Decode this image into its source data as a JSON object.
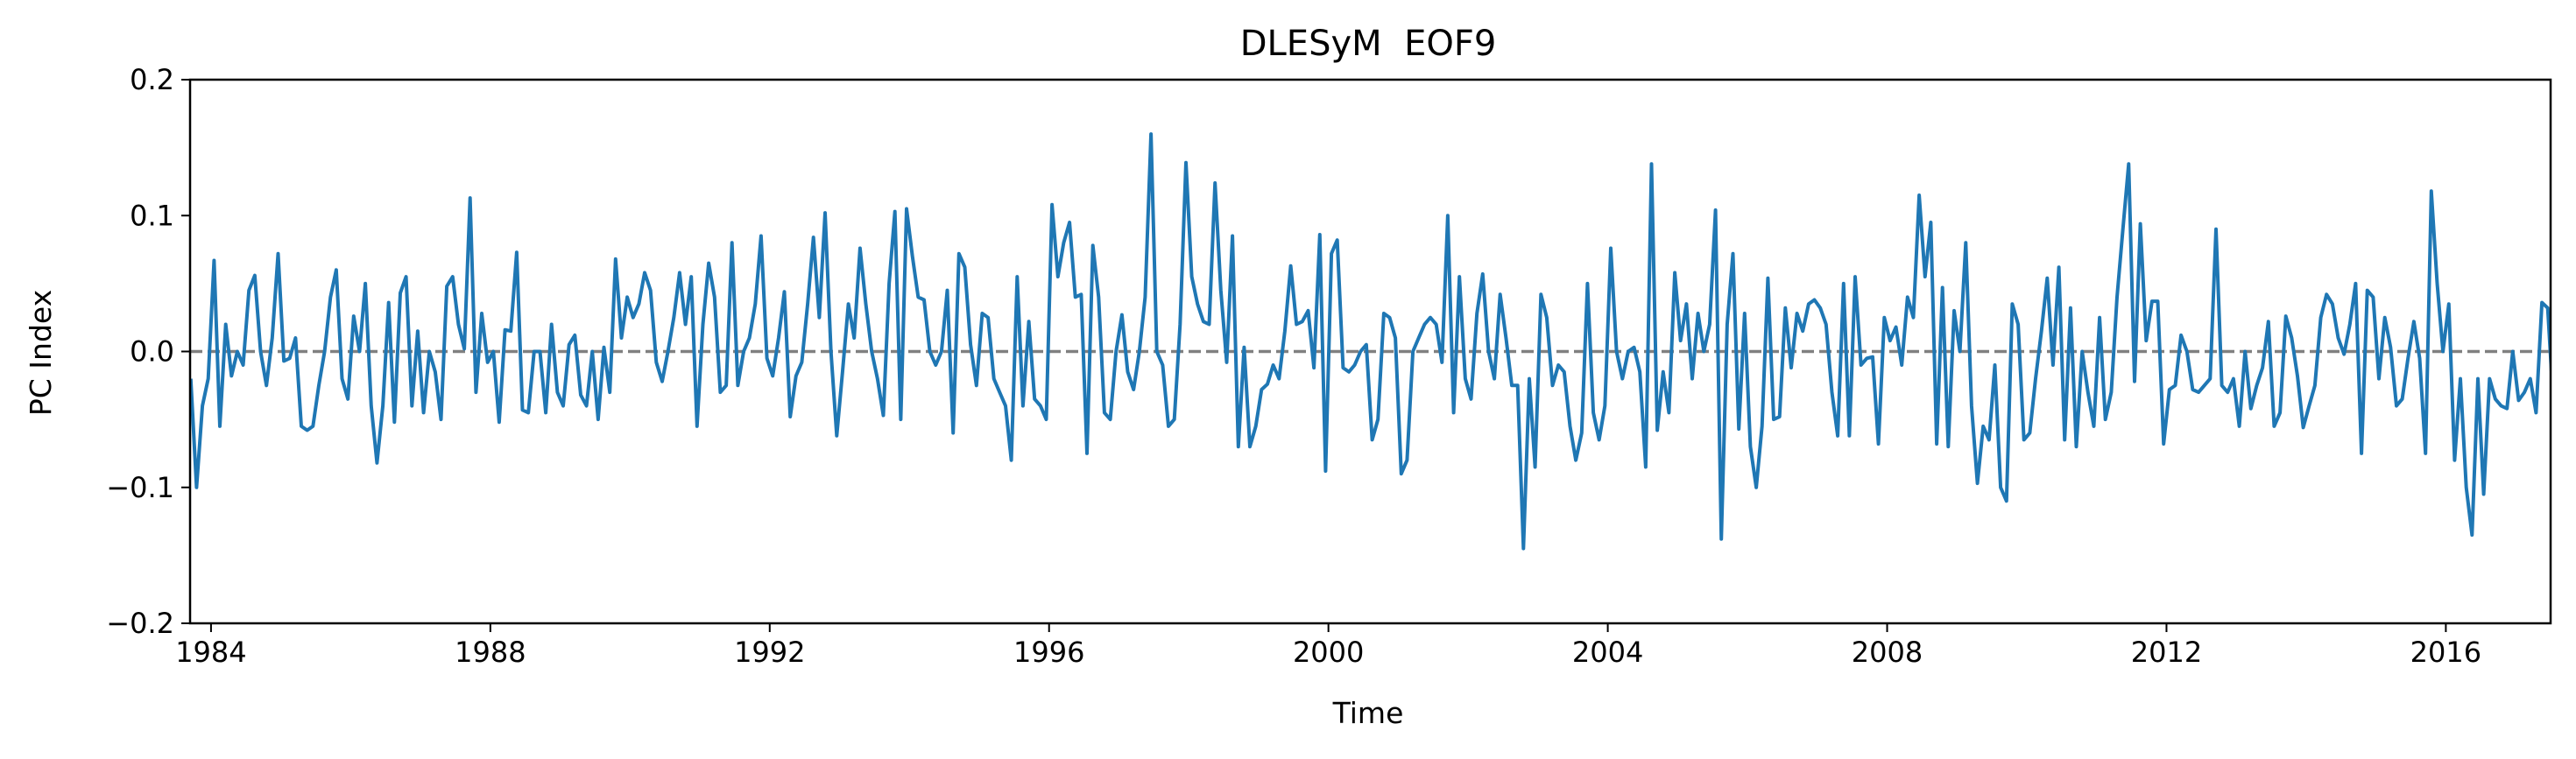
{
  "chart_data": {
    "type": "line",
    "title": "DLESyM  EOF9",
    "xlabel": "Time",
    "ylabel": "PC Index",
    "xlim": [
      1983.7,
      2017.5
    ],
    "ylim": [
      -0.2,
      0.2
    ],
    "x_ticks": [
      1984,
      1988,
      1992,
      1996,
      2000,
      2004,
      2008,
      2012,
      2016
    ],
    "x_tick_labels": [
      "1984",
      "1988",
      "1992",
      "1996",
      "2000",
      "2004",
      "2008",
      "2012",
      "2016"
    ],
    "y_ticks": [
      -0.2,
      -0.1,
      0.0,
      0.1,
      0.2
    ],
    "y_tick_labels": [
      "−0.2",
      "−0.1",
      "0.0",
      "0.1",
      "0.2"
    ],
    "reference_line": {
      "y": 0.0,
      "style": "dashed",
      "color": "#808080"
    },
    "grid": false,
    "x_start": 1983.71,
    "x_step": 0.08333,
    "series": [
      {
        "color": "#1f77b4",
        "values": [
          -0.02,
          -0.1,
          -0.04,
          -0.02,
          0.067,
          -0.055,
          0.02,
          -0.018,
          0.0,
          -0.01,
          0.045,
          0.056,
          0.0,
          -0.025,
          0.01,
          0.072,
          -0.007,
          -0.005,
          0.01,
          -0.055,
          -0.058,
          -0.055,
          -0.025,
          0.0,
          0.04,
          0.06,
          -0.02,
          -0.035,
          0.026,
          0.0,
          0.05,
          -0.04,
          -0.082,
          -0.04,
          0.036,
          -0.052,
          0.043,
          0.055,
          -0.04,
          0.015,
          -0.045,
          0.0,
          -0.015,
          -0.05,
          0.048,
          0.055,
          0.02,
          0.002,
          0.113,
          -0.03,
          0.028,
          -0.008,
          0.0,
          -0.052,
          0.016,
          0.015,
          0.073,
          -0.043,
          -0.045,
          0.0,
          0.0,
          -0.045,
          0.02,
          -0.03,
          -0.04,
          0.005,
          0.012,
          -0.032,
          -0.04,
          0.0,
          -0.05,
          0.003,
          -0.03,
          0.068,
          0.01,
          0.04,
          0.025,
          0.035,
          0.058,
          0.045,
          -0.008,
          -0.022,
          0.0,
          0.025,
          0.058,
          0.02,
          0.055,
          -0.055,
          0.02,
          0.065,
          0.04,
          -0.03,
          -0.025,
          0.08,
          -0.025,
          0.0,
          0.01,
          0.035,
          0.085,
          -0.005,
          -0.018,
          0.01,
          0.044,
          -0.048,
          -0.018,
          -0.008,
          0.035,
          0.084,
          0.025,
          0.102,
          0.0,
          -0.062,
          -0.015,
          0.035,
          0.01,
          0.076,
          0.035,
          0.0,
          -0.02,
          -0.047,
          0.05,
          0.103,
          -0.05,
          0.105,
          0.07,
          0.04,
          0.038,
          0.0,
          -0.01,
          0.0,
          0.045,
          -0.06,
          0.072,
          0.062,
          0.005,
          -0.025,
          0.028,
          0.025,
          -0.02,
          -0.03,
          -0.04,
          -0.08,
          0.055,
          -0.04,
          0.022,
          -0.035,
          -0.04,
          -0.05,
          0.108,
          0.055,
          0.08,
          0.095,
          0.04,
          0.042,
          -0.075,
          0.078,
          0.04,
          -0.045,
          -0.05,
          0.0,
          0.027,
          -0.015,
          -0.028,
          0.0,
          0.04,
          0.16,
          0.0,
          -0.01,
          -0.055,
          -0.05,
          0.02,
          0.139,
          0.055,
          0.035,
          0.022,
          0.02,
          0.124,
          0.045,
          -0.008,
          0.085,
          -0.07,
          0.003,
          -0.07,
          -0.055,
          -0.028,
          -0.024,
          -0.01,
          -0.02,
          0.015,
          0.063,
          0.02,
          0.022,
          0.03,
          -0.012,
          0.086,
          -0.088,
          0.072,
          0.082,
          -0.012,
          -0.015,
          -0.01,
          0.0,
          0.005,
          -0.065,
          -0.05,
          0.028,
          0.025,
          0.01,
          -0.09,
          -0.08,
          0.0,
          0.01,
          0.02,
          0.025,
          0.02,
          -0.008,
          0.1,
          -0.045,
          0.055,
          -0.02,
          -0.035,
          0.028,
          0.057,
          0.0,
          -0.02,
          0.042,
          0.01,
          -0.025,
          -0.025,
          -0.145,
          -0.02,
          -0.085,
          0.042,
          0.025,
          -0.025,
          -0.01,
          -0.015,
          -0.055,
          -0.08,
          -0.06,
          0.05,
          -0.045,
          -0.065,
          -0.04,
          0.076,
          0.0,
          -0.02,
          0.0,
          0.003,
          -0.015,
          -0.085,
          0.138,
          -0.058,
          -0.015,
          -0.045,
          0.058,
          0.008,
          0.035,
          -0.02,
          0.028,
          0.0,
          0.02,
          0.104,
          -0.138,
          0.02,
          0.072,
          -0.057,
          0.028,
          -0.07,
          -0.1,
          -0.055,
          0.054,
          -0.05,
          -0.048,
          0.032,
          -0.012,
          0.028,
          0.015,
          0.035,
          0.038,
          0.032,
          0.02,
          -0.03,
          -0.062,
          0.05,
          -0.062,
          0.055,
          -0.01,
          -0.005,
          -0.004,
          -0.068,
          0.025,
          0.008,
          0.018,
          -0.01,
          0.04,
          0.025,
          0.115,
          0.055,
          0.095,
          -0.068,
          0.047,
          -0.07,
          0.03,
          0.0,
          0.08,
          -0.04,
          -0.097,
          -0.055,
          -0.065,
          -0.01,
          -0.1,
          -0.11,
          0.035,
          0.02,
          -0.065,
          -0.06,
          -0.02,
          0.015,
          0.054,
          -0.01,
          0.062,
          -0.065,
          0.032,
          -0.07,
          0.0,
          -0.03,
          -0.055,
          0.025,
          -0.05,
          -0.03,
          0.04,
          0.09,
          0.138,
          -0.022,
          0.094,
          0.008,
          0.037,
          0.037,
          -0.068,
          -0.028,
          -0.025,
          0.012,
          0.0,
          -0.028,
          -0.03,
          -0.025,
          -0.02,
          0.09,
          -0.025,
          -0.03,
          -0.02,
          -0.055,
          0.0,
          -0.042,
          -0.025,
          -0.012,
          0.022,
          -0.055,
          -0.045,
          0.026,
          0.01,
          -0.018,
          -0.056,
          -0.04,
          -0.025,
          0.025,
          0.042,
          0.035,
          0.01,
          -0.002,
          0.02,
          0.05,
          -0.075,
          0.045,
          0.04,
          -0.02,
          0.025,
          0.003,
          -0.04,
          -0.035,
          -0.005,
          0.022,
          -0.005,
          -0.075,
          0.118,
          0.05,
          0.0,
          0.035,
          -0.08,
          -0.02,
          -0.1,
          -0.135,
          -0.02,
          -0.105,
          -0.02,
          -0.035,
          -0.04,
          -0.042,
          0.0,
          -0.036,
          -0.03,
          -0.02,
          -0.045,
          0.036,
          0.032,
          -0.04
        ]
      }
    ]
  }
}
